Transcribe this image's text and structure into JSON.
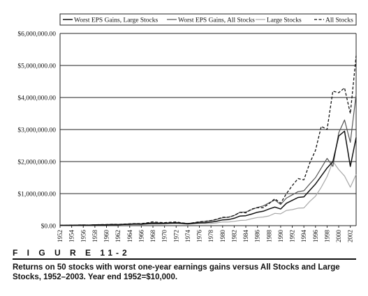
{
  "figure": {
    "label": "F I G U R E   11-2",
    "caption": "Returns on 50 stocks with worst one-year earnings gains versus All Stocks and Large Stocks, 1952–2003. Year end 1952=$10,000."
  },
  "chart_data": {
    "type": "line",
    "ylim": [
      0,
      6000000
    ],
    "xlim": [
      1952,
      2003
    ],
    "yticks": [
      0,
      1000000,
      2000000,
      3000000,
      4000000,
      5000000,
      6000000
    ],
    "ytick_labels": [
      "$0.00",
      "$1,000,000.00",
      "$2,000,000.00",
      "$3,000,000.00",
      "$4,000,000.00",
      "$5,000,000.00",
      "$6,000,000.00"
    ],
    "xticks": [
      1952,
      1954,
      1956,
      1958,
      1960,
      1962,
      1964,
      1966,
      1968,
      1970,
      1972,
      1974,
      1976,
      1978,
      1980,
      1982,
      1984,
      1986,
      1988,
      1990,
      1992,
      1994,
      1996,
      1998,
      2000,
      2002
    ],
    "xtick_labels": [
      "1952",
      "1954",
      "1956",
      "1958",
      "1960",
      "1962",
      "1964",
      "1966",
      "1968",
      "1970",
      "1972",
      "1974",
      "1976",
      "1978",
      "1980",
      "1982",
      "1984",
      "1986",
      "1988",
      "1990",
      "1992",
      "1994",
      "1996",
      "1998",
      "2000",
      "2002"
    ],
    "grid": "horizontal",
    "legend_position": "top",
    "x": [
      1952,
      1953,
      1954,
      1955,
      1956,
      1957,
      1958,
      1959,
      1960,
      1961,
      1962,
      1963,
      1964,
      1965,
      1966,
      1967,
      1968,
      1969,
      1970,
      1971,
      1972,
      1973,
      1974,
      1975,
      1976,
      1977,
      1978,
      1979,
      1980,
      1981,
      1982,
      1983,
      1984,
      1985,
      1986,
      1987,
      1988,
      1989,
      1990,
      1991,
      1992,
      1993,
      1994,
      1995,
      1996,
      1997,
      1998,
      1999,
      2000,
      2001,
      2002,
      2003
    ],
    "series": [
      {
        "name": "Worst EPS Gains, Large Stocks",
        "color": "#111111",
        "dash": "solid",
        "width": 1.5,
        "values": [
          10000,
          11000,
          14000,
          18000,
          19000,
          18000,
          24000,
          27000,
          27000,
          33000,
          31000,
          37000,
          42000,
          47000,
          44000,
          57000,
          68000,
          66000,
          70000,
          78000,
          82000,
          72000,
          56000,
          70000,
          86000,
          93000,
          110000,
          140000,
          180000,
          190000,
          230000,
          300000,
          310000,
          360000,
          420000,
          450000,
          520000,
          580000,
          520000,
          700000,
          790000,
          880000,
          900000,
          1100000,
          1300000,
          1550000,
          1800000,
          2000000,
          2800000,
          2950000,
          1850000,
          2750000
        ]
      },
      {
        "name": "Worst EPS Gains, All Stocks",
        "color": "#555555",
        "dash": "solid",
        "width": 1.2,
        "values": [
          10000,
          11500,
          15500,
          20000,
          21500,
          20500,
          29000,
          33000,
          33000,
          42000,
          39000,
          47000,
          55000,
          63000,
          60000,
          78000,
          97000,
          90000,
          85000,
          93000,
          100000,
          85000,
          68000,
          90000,
          115000,
          132000,
          155000,
          195000,
          245000,
          262000,
          318000,
          418000,
          425000,
          500000,
          570000,
          615000,
          710000,
          800000,
          660000,
          860000,
          960000,
          1060000,
          1090000,
          1300000,
          1500000,
          1800000,
          2100000,
          1850000,
          2900000,
          3300000,
          2600000,
          4100000
        ]
      },
      {
        "name": "Large Stocks",
        "color": "#a8a8a8",
        "dash": "solid",
        "width": 1.2,
        "values": [
          10000,
          10200,
          15000,
          19000,
          20000,
          18500,
          25000,
          28000,
          28000,
          34000,
          31000,
          37000,
          42000,
          45000,
          41000,
          49000,
          53000,
          50000,
          52000,
          59000,
          68000,
          59000,
          44000,
          60000,
          72000,
          68000,
          73000,
          88000,
          115000,
          112000,
          135000,
          162000,
          170000,
          217000,
          255000,
          270000,
          305000,
          385000,
          370000,
          475000,
          500000,
          545000,
          555000,
          755000,
          920000,
          1200000,
          1530000,
          2000000,
          1750000,
          1550000,
          1200000,
          1600000
        ]
      },
      {
        "name": "All Stocks",
        "color": "#111111",
        "dash": "dashed",
        "width": 1.3,
        "values": [
          10000,
          10400,
          16000,
          20500,
          22000,
          20000,
          29000,
          33500,
          34000,
          44000,
          39000,
          48000,
          56000,
          66000,
          63000,
          90000,
          120000,
          100000,
          95000,
          106000,
          115000,
          90000,
          65000,
          92000,
          122000,
          135000,
          160000,
          200000,
          260000,
          262000,
          320000,
          415000,
          400000,
          520000,
          560000,
          560000,
          690000,
          840000,
          700000,
          1000000,
          1250000,
          1470000,
          1430000,
          1950000,
          2350000,
          3100000,
          3000000,
          4200000,
          4150000,
          4300000,
          3500000,
          5300000
        ]
      }
    ]
  }
}
